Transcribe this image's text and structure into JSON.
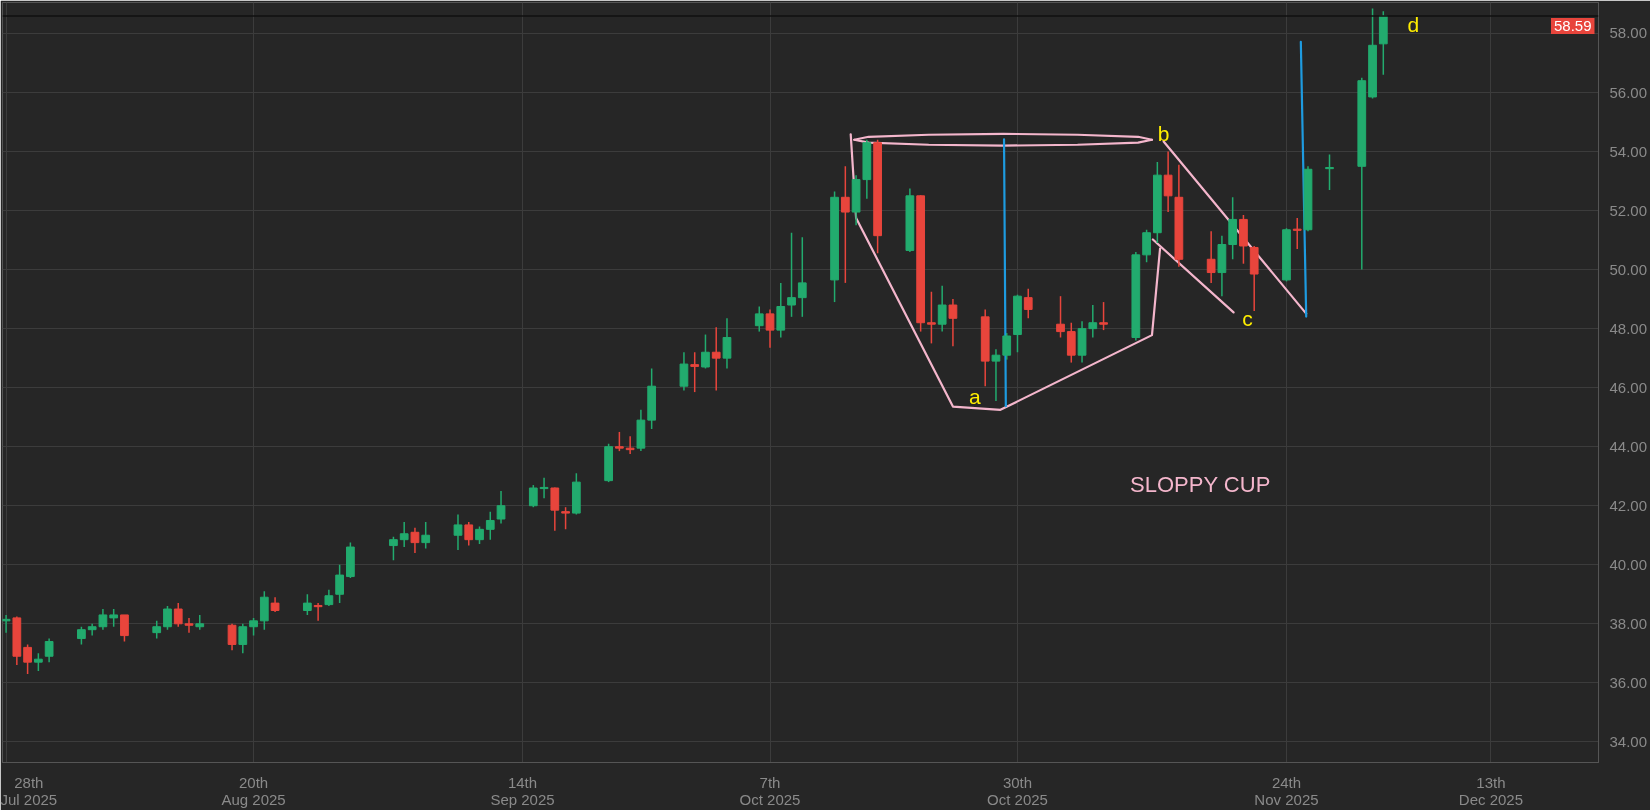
{
  "chart_data": {
    "type": "candlestick",
    "x": [
      "2025-07-28",
      "2025-07-29",
      "2025-07-30",
      "2025-07-31",
      "2025-08-01",
      "2025-08-04",
      "2025-08-05",
      "2025-08-06",
      "2025-08-07",
      "2025-08-08",
      "2025-08-11",
      "2025-08-12",
      "2025-08-13",
      "2025-08-14",
      "2025-08-15",
      "2025-08-18",
      "2025-08-19",
      "2025-08-20",
      "2025-08-21",
      "2025-08-22",
      "2025-08-25",
      "2025-08-26",
      "2025-08-27",
      "2025-08-28",
      "2025-08-29",
      "2025-09-02",
      "2025-09-03",
      "2025-09-04",
      "2025-09-05",
      "2025-09-08",
      "2025-09-09",
      "2025-09-10",
      "2025-09-11",
      "2025-09-12",
      "2025-09-15",
      "2025-09-16",
      "2025-09-17",
      "2025-09-18",
      "2025-09-19",
      "2025-09-22",
      "2025-09-23",
      "2025-09-24",
      "2025-09-25",
      "2025-09-26",
      "2025-09-29",
      "2025-09-30",
      "2025-10-01",
      "2025-10-02",
      "2025-10-03",
      "2025-10-06",
      "2025-10-07",
      "2025-10-08",
      "2025-10-09",
      "2025-10-10",
      "2025-10-13",
      "2025-10-14",
      "2025-10-15",
      "2025-10-16",
      "2025-10-17",
      "2025-10-20",
      "2025-10-21",
      "2025-10-22",
      "2025-10-23",
      "2025-10-24",
      "2025-10-27",
      "2025-10-28",
      "2025-10-29",
      "2025-10-30",
      "2025-10-31",
      "2025-11-03",
      "2025-11-04",
      "2025-11-05",
      "2025-11-06",
      "2025-11-07",
      "2025-11-10",
      "2025-11-11",
      "2025-11-12",
      "2025-11-13",
      "2025-11-14",
      "2025-11-17",
      "2025-11-18",
      "2025-11-19",
      "2025-11-20",
      "2025-11-21",
      "2025-11-24",
      "2025-11-25",
      "2025-11-26",
      "2025-11-28",
      "2025-12-01",
      "2025-12-02",
      "2025-12-03"
    ],
    "ohlc": [
      [
        38.1,
        38.3,
        37.7,
        38.15
      ],
      [
        38.2,
        38.25,
        36.6,
        36.9
      ],
      [
        37.2,
        37.3,
        36.3,
        36.7
      ],
      [
        36.7,
        37.0,
        36.4,
        36.8
      ],
      [
        36.9,
        37.5,
        36.7,
        37.4
      ],
      [
        37.5,
        37.9,
        37.3,
        37.8
      ],
      [
        37.8,
        38.0,
        37.6,
        37.9
      ],
      [
        37.9,
        38.5,
        37.8,
        38.3
      ],
      [
        38.2,
        38.5,
        37.9,
        38.3
      ],
      [
        38.3,
        38.3,
        37.4,
        37.6
      ],
      [
        37.7,
        38.1,
        37.5,
        37.9
      ],
      [
        37.9,
        38.6,
        37.8,
        38.5
      ],
      [
        38.5,
        38.7,
        37.9,
        38.0
      ],
      [
        38.0,
        38.2,
        37.7,
        37.95
      ],
      [
        37.9,
        38.3,
        37.8,
        38.0
      ],
      [
        37.95,
        38.0,
        37.1,
        37.3
      ],
      [
        37.3,
        38.0,
        37.0,
        37.9
      ],
      [
        37.9,
        38.2,
        37.6,
        38.1
      ],
      [
        38.1,
        39.1,
        37.8,
        38.9
      ],
      [
        38.7,
        38.9,
        38.4,
        38.45
      ],
      [
        38.45,
        39.0,
        38.3,
        38.7
      ],
      [
        38.62,
        38.7,
        38.1,
        38.58
      ],
      [
        38.65,
        39.15,
        38.6,
        38.95
      ],
      [
        39.0,
        40.0,
        38.7,
        39.65
      ],
      [
        39.6,
        40.75,
        39.55,
        40.6
      ],
      [
        40.65,
        40.95,
        40.15,
        40.85
      ],
      [
        40.85,
        41.45,
        40.6,
        41.05
      ],
      [
        41.1,
        41.25,
        40.4,
        40.75
      ],
      [
        40.75,
        41.45,
        40.55,
        41.0
      ],
      [
        41.0,
        41.7,
        40.5,
        41.35
      ],
      [
        41.35,
        41.45,
        40.65,
        40.85
      ],
      [
        40.85,
        41.3,
        40.7,
        41.2
      ],
      [
        41.2,
        41.8,
        40.85,
        41.5
      ],
      [
        41.55,
        42.5,
        41.4,
        42.0
      ],
      [
        42.0,
        42.7,
        41.95,
        42.6
      ],
      [
        42.58,
        42.95,
        42.25,
        42.62
      ],
      [
        42.6,
        42.62,
        41.15,
        41.85
      ],
      [
        41.8,
        41.95,
        41.2,
        41.75
      ],
      [
        41.75,
        43.1,
        41.7,
        42.8
      ],
      [
        42.85,
        44.1,
        42.8,
        44.0
      ],
      [
        44.0,
        44.5,
        43.85,
        43.95
      ],
      [
        43.95,
        44.35,
        43.75,
        43.9
      ],
      [
        43.95,
        45.25,
        43.85,
        44.9
      ],
      [
        44.9,
        46.65,
        44.6,
        46.05
      ],
      [
        46.05,
        47.2,
        45.9,
        46.8
      ],
      [
        46.78,
        47.2,
        45.85,
        46.72
      ],
      [
        46.7,
        47.8,
        46.65,
        47.2
      ],
      [
        47.2,
        48.05,
        45.9,
        47.0
      ],
      [
        47.0,
        48.35,
        46.65,
        47.7
      ],
      [
        48.1,
        48.75,
        47.9,
        48.5
      ],
      [
        48.5,
        48.65,
        47.35,
        47.95
      ],
      [
        47.95,
        49.55,
        47.7,
        48.75
      ],
      [
        48.8,
        51.25,
        48.4,
        49.05
      ],
      [
        49.05,
        51.1,
        48.4,
        49.55
      ],
      [
        49.65,
        52.65,
        48.9,
        52.45
      ],
      [
        52.45,
        53.5,
        49.55,
        51.95
      ],
      [
        51.95,
        53.2,
        51.5,
        53.05
      ],
      [
        53.05,
        54.4,
        52.4,
        54.3
      ],
      [
        54.3,
        54.4,
        50.55,
        51.15
      ],
      [
        50.65,
        52.75,
        50.6,
        52.5
      ],
      [
        52.5,
        52.52,
        47.9,
        48.2
      ],
      [
        48.2,
        49.25,
        47.5,
        48.15
      ],
      [
        48.15,
        49.45,
        47.9,
        48.8
      ],
      [
        48.8,
        49.0,
        47.4,
        48.35
      ],
      [
        48.4,
        48.65,
        46.05,
        46.9
      ],
      [
        46.9,
        47.3,
        45.55,
        47.1
      ],
      [
        47.1,
        47.85,
        46.95,
        47.75
      ],
      [
        47.8,
        49.15,
        47.2,
        49.1
      ],
      [
        49.05,
        49.35,
        48.35,
        48.65
      ],
      [
        48.15,
        49.1,
        47.7,
        47.9
      ],
      [
        47.9,
        48.2,
        46.85,
        47.1
      ],
      [
        47.1,
        48.25,
        46.85,
        48.0
      ],
      [
        48.0,
        48.8,
        47.7,
        48.2
      ],
      [
        48.2,
        48.9,
        47.95,
        48.15
      ],
      [
        47.7,
        50.6,
        47.6,
        50.5
      ],
      [
        50.5,
        51.35,
        50.25,
        51.25
      ],
      [
        51.25,
        53.65,
        50.9,
        53.2
      ],
      [
        53.2,
        54.0,
        51.95,
        52.5
      ],
      [
        52.45,
        53.55,
        50.1,
        50.35
      ],
      [
        50.35,
        51.3,
        49.55,
        49.9
      ],
      [
        49.9,
        51.15,
        49.1,
        50.85
      ],
      [
        50.85,
        52.45,
        50.35,
        51.7
      ],
      [
        51.7,
        51.85,
        50.2,
        50.8
      ],
      [
        50.75,
        50.8,
        48.6,
        49.85
      ],
      [
        49.65,
        51.4,
        49.6,
        51.35
      ],
      [
        51.37,
        51.75,
        50.7,
        51.33
      ],
      [
        51.35,
        53.5,
        51.3,
        53.4
      ],
      [
        53.42,
        53.9,
        52.7,
        53.46
      ],
      [
        53.5,
        56.5,
        50.0,
        56.4
      ],
      [
        55.85,
        58.85,
        55.8,
        57.6
      ],
      [
        57.65,
        58.75,
        56.6,
        58.59
      ]
    ],
    "colors": [
      "#22ab6e",
      "#e8453c",
      "#e8453c",
      "#22ab6e",
      "#22ab6e",
      "#22ab6e",
      "#22ab6e",
      "#22ab6e",
      "#22ab6e",
      "#e8453c",
      "#22ab6e",
      "#22ab6e",
      "#e8453c",
      "#e8453c",
      "#22ab6e",
      "#e8453c",
      "#22ab6e",
      "#22ab6e",
      "#22ab6e",
      "#e8453c",
      "#22ab6e",
      "#e8453c",
      "#22ab6e",
      "#22ab6e",
      "#22ab6e",
      "#22ab6e",
      "#22ab6e",
      "#e8453c",
      "#22ab6e",
      "#22ab6e",
      "#e8453c",
      "#22ab6e",
      "#22ab6e",
      "#22ab6e",
      "#22ab6e",
      "#22ab6e",
      "#e8453c",
      "#e8453c",
      "#22ab6e",
      "#22ab6e",
      "#e8453c",
      "#e8453c",
      "#22ab6e",
      "#22ab6e",
      "#22ab6e",
      "#e8453c",
      "#22ab6e",
      "#e8453c",
      "#22ab6e",
      "#22ab6e",
      "#e8453c",
      "#22ab6e",
      "#22ab6e",
      "#22ab6e",
      "#22ab6e",
      "#e8453c",
      "#22ab6e",
      "#22ab6e",
      "#e8453c",
      "#22ab6e",
      "#e8453c",
      "#e8453c",
      "#22ab6e",
      "#e8453c",
      "#e8453c",
      "#22ab6e",
      "#22ab6e",
      "#22ab6e",
      "#e8453c",
      "#e8453c",
      "#e8453c",
      "#22ab6e",
      "#22ab6e",
      "#e8453c",
      "#22ab6e",
      "#22ab6e",
      "#22ab6e",
      "#e8453c",
      "#e8453c",
      "#e8453c",
      "#22ab6e",
      "#22ab6e",
      "#e8453c",
      "#e8453c",
      "#22ab6e",
      "#e8453c",
      "#22ab6e",
      "#22ab6e",
      "#22ab6e",
      "#22ab6e",
      "#22ab6e"
    ],
    "series": [
      {
        "type": "line",
        "color": "#f4b6cc",
        "x": [
          "2025-10-14T12:00",
          "2025-10-15",
          "2025-10-24",
          "2025-10-28T10:00",
          "2025-11-11T12:00",
          "2025-11-12T06:00"
        ],
        "values": [
          54.58,
          51.75,
          45.36,
          45.25,
          47.78,
          50.71
        ]
      },
      {
        "type": "line",
        "color": "#f4b6cc",
        "x": [
          "2025-11-11T14:00",
          "2025-11-19T02:00"
        ],
        "values": [
          51.02,
          48.55
        ]
      },
      {
        "type": "line",
        "color": "#f4b6cc",
        "x": [
          "2025-11-12T14:00",
          "2025-11-25T20:00"
        ],
        "values": [
          54.34,
          48.51
        ]
      },
      {
        "type": "line",
        "color": "#f4b6cc",
        "x": [
          "2025-10-14T20:00",
          "2025-10-16T04:00",
          "2025-10-21T18:00",
          "2025-10-28T16:00",
          "2025-11-04T14:00",
          "2025-11-10T05:00",
          "2025-11-11T12:00"
        ],
        "values": [
          54.4,
          54.5,
          54.57,
          54.6,
          54.57,
          54.5,
          54.4
        ]
      },
      {
        "type": "line",
        "color": "#f4b6cc",
        "x": [
          "2025-10-14T20:00",
          "2025-10-16T04:00",
          "2025-10-21T18:00",
          "2025-10-28T16:00",
          "2025-11-04T14:00",
          "2025-11-10T05:00",
          "2025-11-11T12:00"
        ],
        "values": [
          54.4,
          54.3,
          54.23,
          54.2,
          54.23,
          54.3,
          54.4
        ]
      },
      {
        "type": "line",
        "color": "#1e9be0",
        "x": [
          "2025-10-28T18:00",
          "2025-10-28T22:00"
        ],
        "values": [
          54.41,
          45.37
        ]
      },
      {
        "type": "line",
        "color": "#1e9be0",
        "x": [
          "2025-11-25T08:00",
          "2025-11-25T20:00"
        ],
        "values": [
          57.72,
          48.41
        ]
      }
    ],
    "annotations": [
      {
        "text": "a",
        "x": "2025-10-24",
        "y": 45.36
      },
      {
        "text": "b",
        "x": "2025-11-12T14:00",
        "y": 54.34
      },
      {
        "text": "c",
        "x": "2025-11-19T02:00",
        "y": 48.55
      },
      {
        "text": "d",
        "x": "2025-12-03",
        "y": 58.59
      },
      "SLOPPY CUP"
    ],
    "ref_lines": [
      {
        "axis": "y",
        "value": 58.59,
        "label": "58.59",
        "color": "#111111"
      }
    ],
    "xlim": [
      "2025-07-27T16:00",
      "2025-12-23"
    ],
    "xticks": [
      {
        "value": "2025-07-28",
        "label": "28th Jul 2025"
      },
      {
        "value": "2025-08-20",
        "label": "20th Aug 2025"
      },
      {
        "value": "2025-09-14",
        "label": "14th Sep 2025"
      },
      {
        "value": "2025-10-07",
        "label": "7th Oct 2025"
      },
      {
        "value": "2025-10-30",
        "label": "30th Oct 2025"
      },
      {
        "value": "2025-11-24",
        "label": "24th Nov 2025"
      },
      {
        "value": "2025-12-13",
        "label": "13th Dec 2025"
      }
    ],
    "ylim": [
      33.3,
      59.05
    ],
    "yticks": [
      {
        "value": 34,
        "label": "34.00"
      },
      {
        "value": 36,
        "label": "36.00"
      },
      {
        "value": 38,
        "label": "38.00"
      },
      {
        "value": 40,
        "label": "40.00"
      },
      {
        "value": 42,
        "label": "42.00"
      },
      {
        "value": 44,
        "label": "44.00"
      },
      {
        "value": 46,
        "label": "46.00"
      },
      {
        "value": 48,
        "label": "48.00"
      },
      {
        "value": 50,
        "label": "50.00"
      },
      {
        "value": 52,
        "label": "52.00"
      },
      {
        "value": 54,
        "label": "54.00"
      },
      {
        "value": 56,
        "label": "56.00"
      },
      {
        "value": 58,
        "label": "58.00"
      }
    ],
    "grid": true
  }
}
